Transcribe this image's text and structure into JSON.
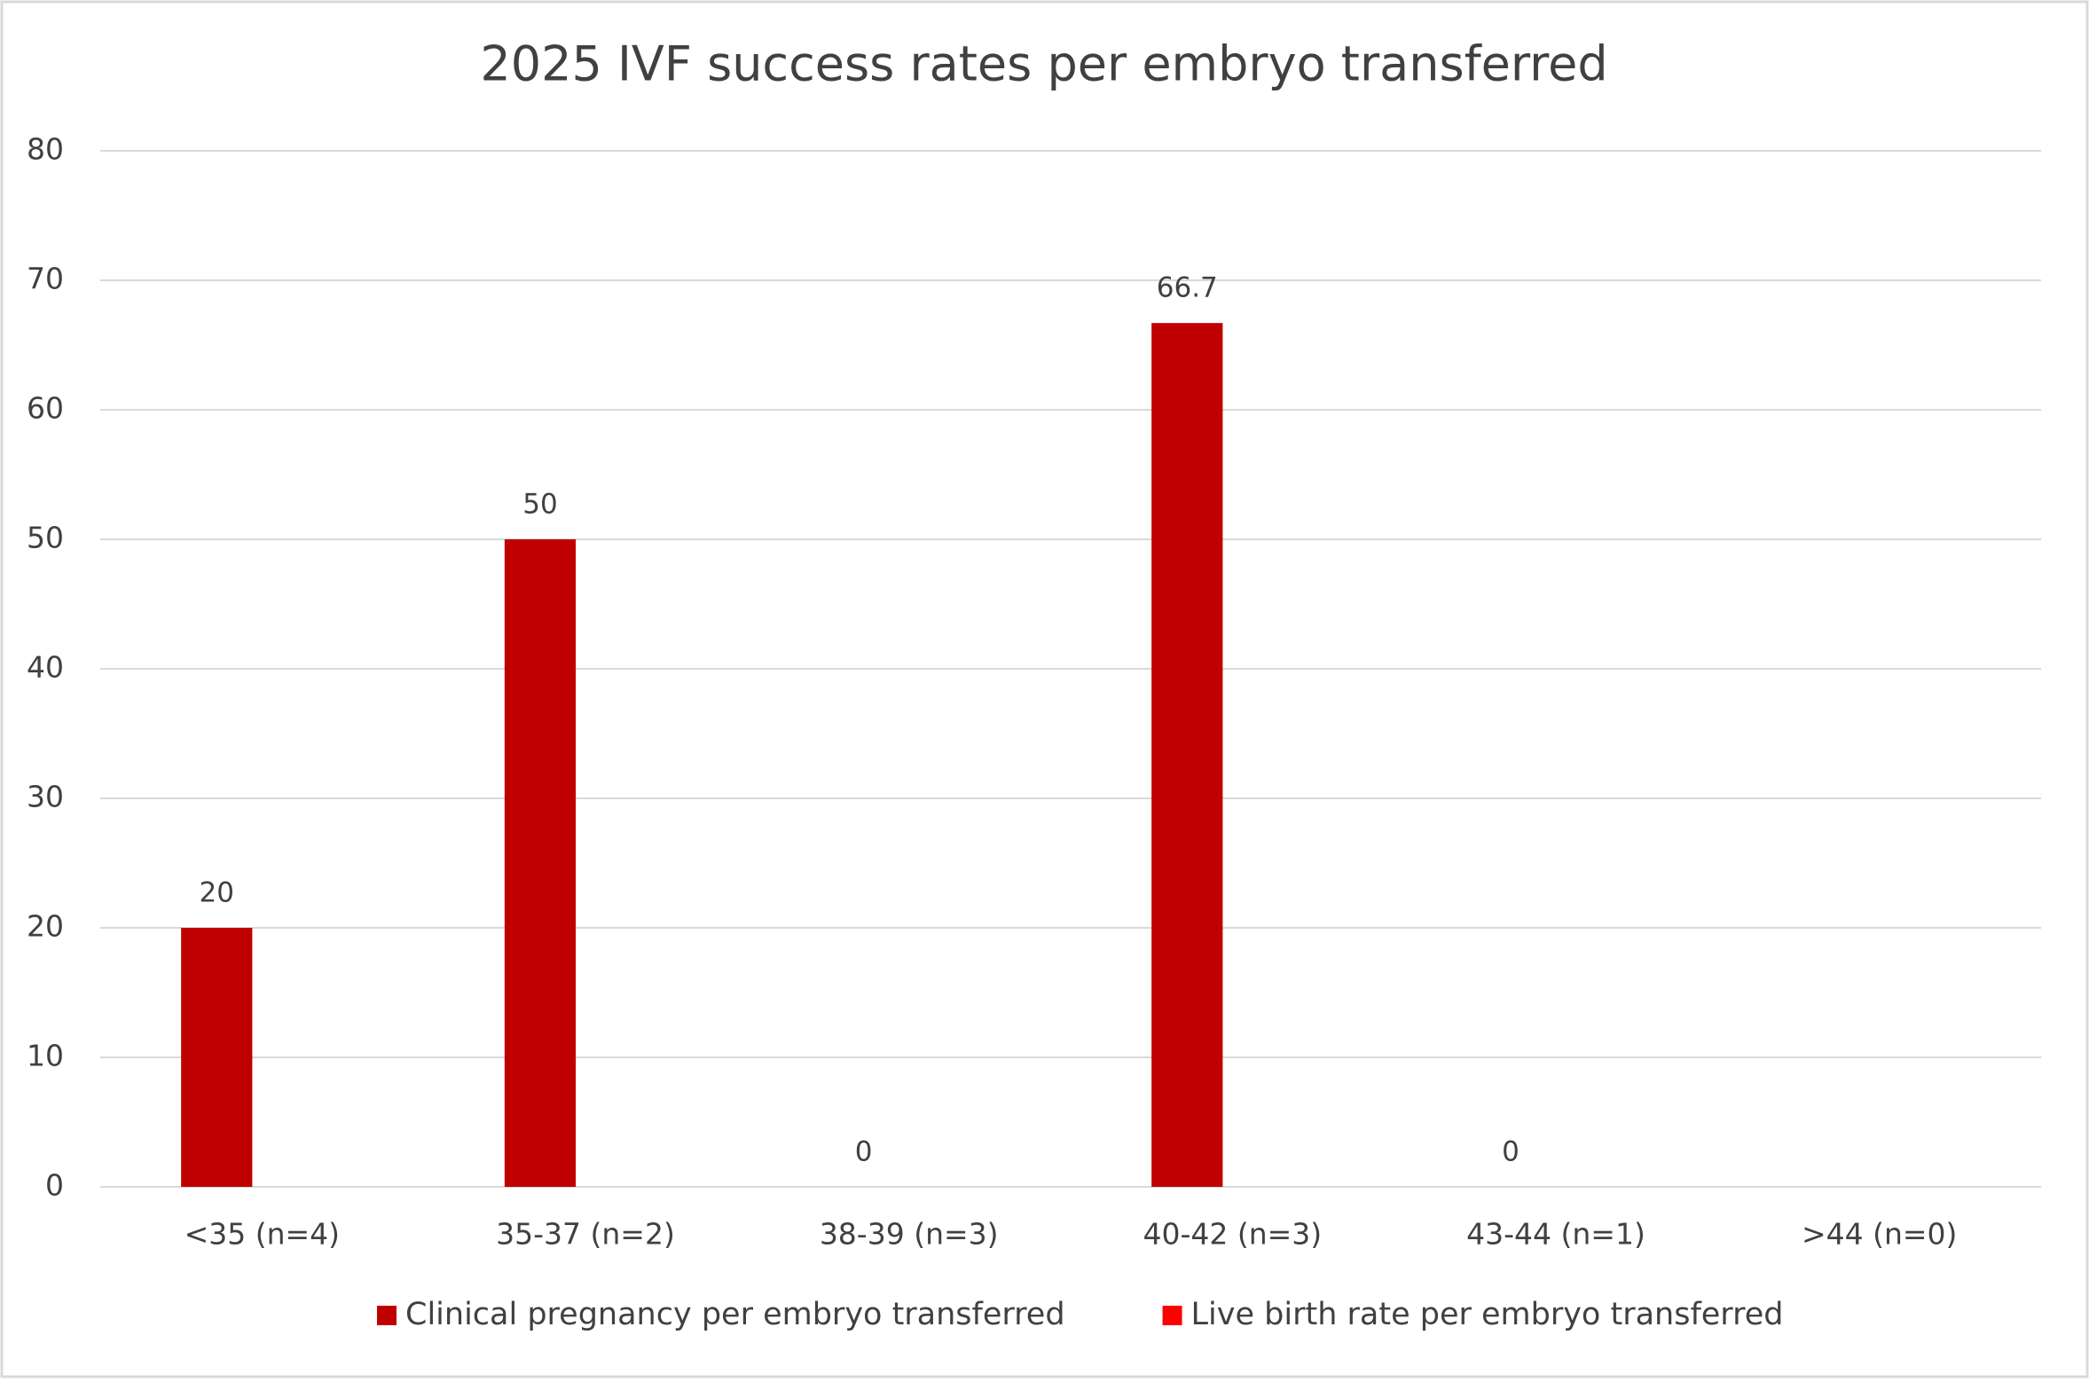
{
  "chart_data": {
    "type": "bar",
    "title": "2025 IVF success rates per embryo transferred",
    "categories": [
      "<35 (n=4)",
      "35-37 (n=2)",
      "38-39 (n=3)",
      "40-42 (n=3)",
      "43-44 (n=1)",
      ">44 (n=0)"
    ],
    "series": [
      {
        "name": "Clinical pregnancy per embryo transferred",
        "color": "#c00000",
        "values": [
          20,
          50,
          0,
          66.7,
          0,
          null
        ]
      },
      {
        "name": "Live birth rate per embryo transferred",
        "color": "#ff0000",
        "values": [
          null,
          null,
          null,
          null,
          null,
          null
        ]
      }
    ],
    "ylim": [
      0,
      80
    ],
    "yticks": [
      0,
      10,
      20,
      30,
      40,
      50,
      60,
      70,
      80
    ],
    "grid": true,
    "legend": "bottom"
  }
}
